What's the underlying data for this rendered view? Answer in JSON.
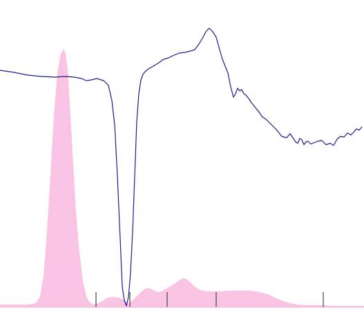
{
  "chart_data": {
    "type": "area",
    "title": "",
    "xlabel": "",
    "ylabel": "",
    "xlim": [
      0,
      527
    ],
    "ylim": [
      0,
      450
    ],
    "grid": false,
    "legend": "none",
    "x_ticks": [
      139,
      188,
      242,
      313,
      468
    ],
    "series": [
      {
        "kind": "area",
        "color": "#f9c4e3",
        "x": [
          0,
          40,
          52,
          58,
          63,
          68,
          73,
          78,
          83,
          88,
          92,
          95,
          98,
          101,
          105,
          110,
          115,
          120,
          125,
          130,
          135,
          140,
          148,
          156,
          164,
          172,
          180,
          186,
          192,
          198,
          204,
          210,
          216,
          222,
          228,
          234,
          240,
          246,
          252,
          258,
          264,
          270,
          276,
          282,
          288,
          294,
          300,
          310,
          320,
          330,
          340,
          350,
          360,
          370,
          380,
          390,
          400,
          410,
          420,
          430,
          440,
          450,
          460,
          470,
          480,
          490,
          500,
          510,
          527
        ],
        "y": [
          4,
          4,
          6,
          16,
          45,
          110,
          190,
          280,
          340,
          368,
          375,
          368,
          345,
          295,
          225,
          140,
          80,
          38,
          16,
          7,
          4,
          5,
          9,
          14,
          15,
          14,
          10,
          6,
          10,
          16,
          22,
          27,
          28,
          25,
          22,
          23,
          27,
          30,
          34,
          38,
          42,
          41,
          36,
          30,
          26,
          24,
          23,
          23,
          23,
          24,
          24,
          24,
          24,
          23,
          21,
          18,
          13,
          9,
          6,
          4,
          3,
          3,
          3,
          3,
          2,
          2,
          2,
          2,
          2
        ]
      },
      {
        "kind": "line",
        "color": "#1a1a8c",
        "x": [
          0,
          20,
          40,
          60,
          80,
          95,
          108,
          118,
          125,
          132,
          140,
          150,
          157,
          162,
          166,
          170,
          174,
          177,
          180,
          183,
          186,
          189,
          192,
          195,
          198,
          201,
          204,
          207,
          210,
          215,
          222,
          230,
          237,
          244,
          252,
          260,
          268,
          276,
          282,
          288,
          294,
          298,
          303,
          308,
          313,
          318,
          322,
          326,
          330,
          334,
          338,
          341,
          344,
          347,
          350,
          353,
          356,
          360,
          364,
          368,
          372,
          376,
          380,
          385,
          392,
          400,
          408,
          415,
          420,
          424,
          428,
          431,
          434,
          437,
          440,
          443,
          446,
          450,
          455,
          460,
          466,
          472,
          478,
          483,
          488,
          493,
          498,
          503,
          508,
          512,
          516,
          520,
          524
        ],
        "y": [
          344,
          341,
          337,
          335,
          334,
          335,
          334,
          332,
          329,
          330,
          332,
          329,
          322,
          300,
          265,
          190,
          100,
          30,
          10,
          2,
          15,
          50,
          110,
          190,
          270,
          310,
          330,
          338,
          342,
          346,
          350,
          355,
          360,
          362,
          366,
          369,
          370,
          372,
          374,
          382,
          392,
          400,
          405,
          400,
          392,
          374,
          360,
          350,
          340,
          320,
          305,
          310,
          318,
          314,
          316,
          310,
          308,
          303,
          297,
          292,
          287,
          282,
          276,
          273,
          266,
          258,
          248,
          246,
          252,
          246,
          240,
          238,
          245,
          243,
          236,
          240,
          241,
          237,
          239,
          241,
          242,
          236,
          238,
          235,
          244,
          248,
          247,
          253,
          250,
          254,
          259,
          257,
          262
        ]
      }
    ]
  }
}
